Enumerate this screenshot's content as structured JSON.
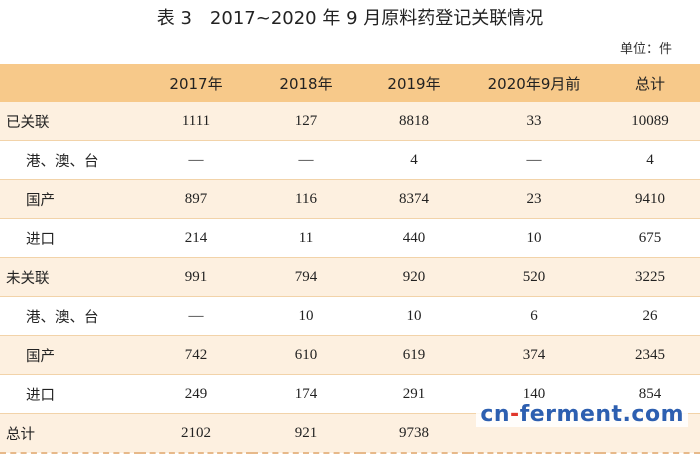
{
  "title": "表 3　2017~2020 年 9 月原料药登记关联情况",
  "unit": "单位：件",
  "table": {
    "headers": [
      "",
      "2017年",
      "2018年",
      "2019年",
      "2020年9月前",
      "总计"
    ],
    "rows": [
      {
        "label": "已关联",
        "sub": false,
        "values": [
          "1111",
          "127",
          "8818",
          "33",
          "10089"
        ]
      },
      {
        "label": "港、澳、台",
        "sub": true,
        "values": [
          "—",
          "—",
          "4",
          "—",
          "4"
        ]
      },
      {
        "label": "国产",
        "sub": true,
        "values": [
          "897",
          "116",
          "8374",
          "23",
          "9410"
        ]
      },
      {
        "label": "进口",
        "sub": true,
        "values": [
          "214",
          "11",
          "440",
          "10",
          "675"
        ]
      },
      {
        "label": "未关联",
        "sub": false,
        "values": [
          "991",
          "794",
          "920",
          "520",
          "3225"
        ]
      },
      {
        "label": "港、澳、台",
        "sub": true,
        "values": [
          "—",
          "10",
          "10",
          "6",
          "26"
        ]
      },
      {
        "label": "国产",
        "sub": true,
        "values": [
          "742",
          "610",
          "619",
          "374",
          "2345"
        ]
      },
      {
        "label": "进口",
        "sub": true,
        "values": [
          "249",
          "174",
          "291",
          "140",
          "854"
        ]
      },
      {
        "label": "总计",
        "sub": false,
        "values": [
          "2102",
          "921",
          "9738",
          "",
          ""
        ]
      }
    ]
  },
  "watermark": {
    "part1": "cn",
    "dot": "-",
    "part2": "ferment.com"
  }
}
